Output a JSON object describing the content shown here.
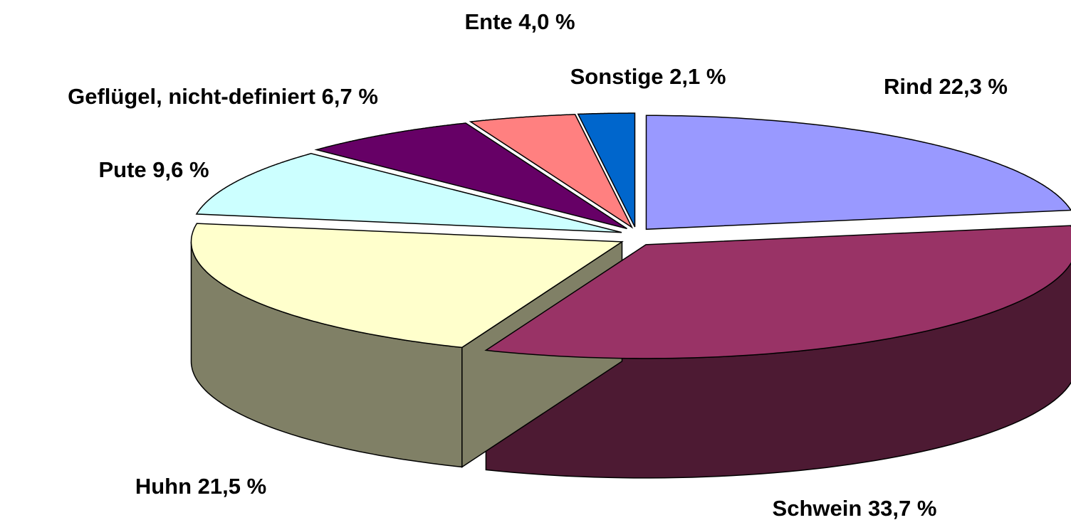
{
  "chart_data": {
    "type": "pie",
    "categories": [
      "Rind",
      "Schwein",
      "Huhn",
      "Pute",
      "Geflügel, nicht-definiert",
      "Ente",
      "Sonstige"
    ],
    "values": [
      22.3,
      33.7,
      21.5,
      9.6,
      6.7,
      4.0,
      2.1
    ],
    "value_labels": [
      "22,3 %",
      "33,7 %",
      "21,5 %",
      "9,6 %",
      "6,7 %",
      "4,0 %",
      "2,1 %"
    ],
    "colors": [
      "#9999ff",
      "#993366",
      "#ffffcc",
      "#ccffff",
      "#660066",
      "#ff8080",
      "#0066cc"
    ]
  }
}
